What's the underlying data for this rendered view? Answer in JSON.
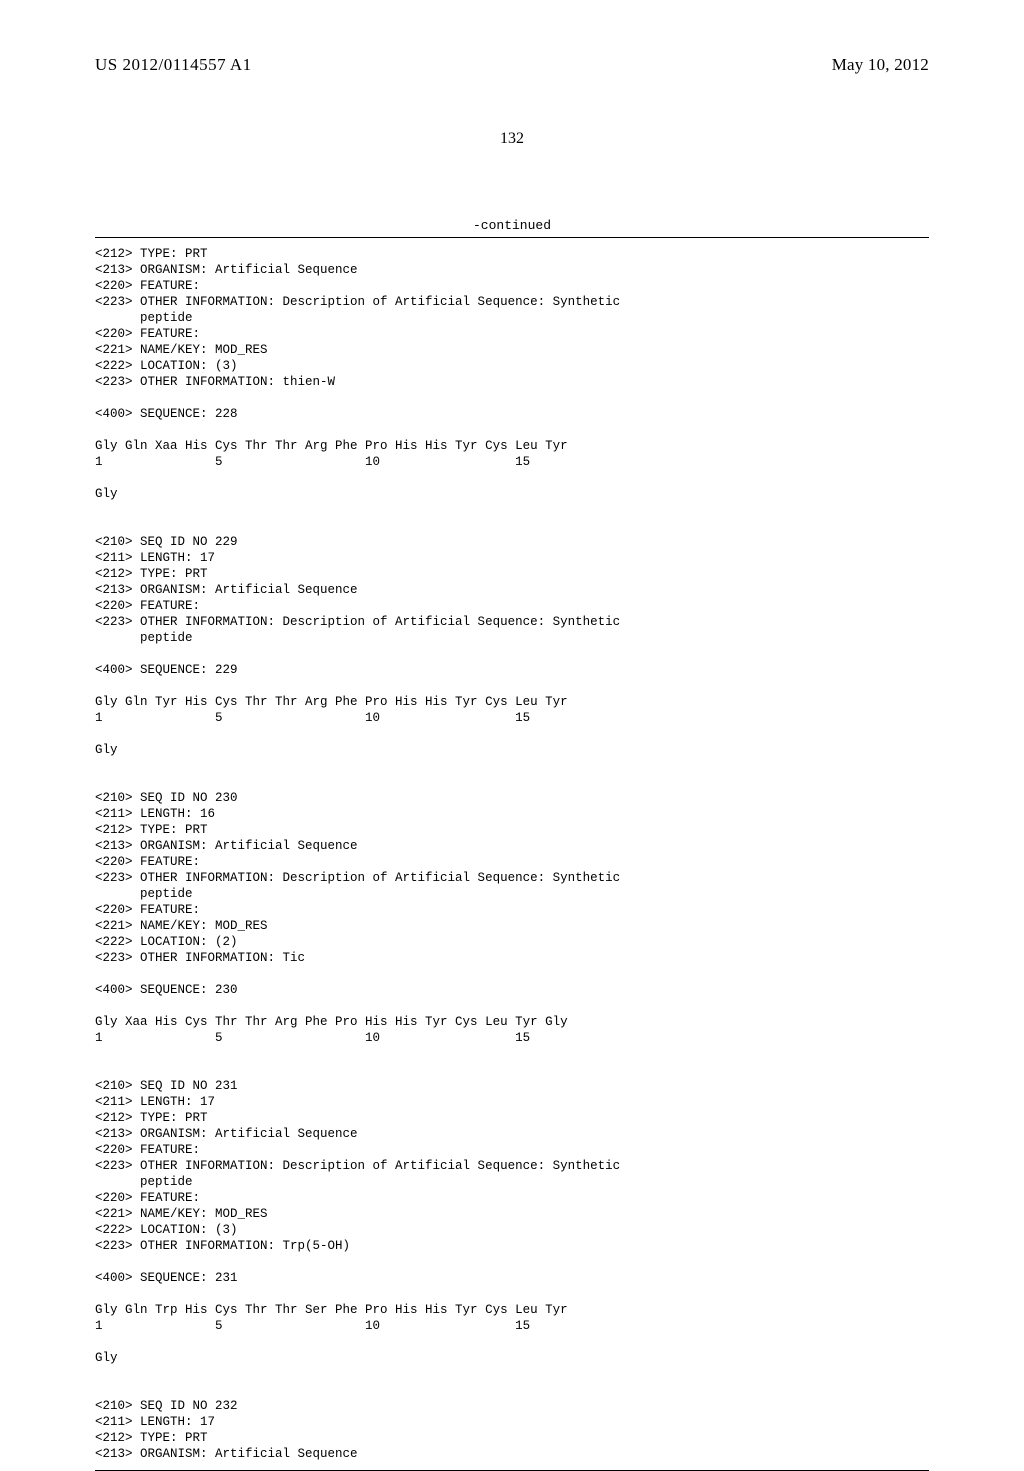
{
  "header": {
    "publication_number": "US 2012/0114557 A1",
    "publication_date": "May 10, 2012"
  },
  "page_number": "132",
  "continued_label": "-continued",
  "blocks": [
    {
      "type": "tags",
      "lines": [
        "<212> TYPE: PRT",
        "<213> ORGANISM: Artificial Sequence",
        "<220> FEATURE:",
        "<223> OTHER INFORMATION: Description of Artificial Sequence: Synthetic",
        "      peptide",
        "<220> FEATURE:",
        "<221> NAME/KEY: MOD_RES",
        "<222> LOCATION: (3)",
        "<223> OTHER INFORMATION: thien-W"
      ]
    },
    {
      "type": "seq_header",
      "line": "<400> SEQUENCE: 228"
    },
    {
      "type": "sequence",
      "residues": "Gly Gln Xaa His Cys Thr Thr Arg Phe Pro His His Tyr Cys Leu Tyr",
      "numbers": "1               5                   10                  15"
    },
    {
      "type": "sequence",
      "residues": "Gly",
      "numbers": ""
    },
    {
      "type": "tags",
      "lines": [
        "<210> SEQ ID NO 229",
        "<211> LENGTH: 17",
        "<212> TYPE: PRT",
        "<213> ORGANISM: Artificial Sequence",
        "<220> FEATURE:",
        "<223> OTHER INFORMATION: Description of Artificial Sequence: Synthetic",
        "      peptide"
      ]
    },
    {
      "type": "seq_header",
      "line": "<400> SEQUENCE: 229"
    },
    {
      "type": "sequence",
      "residues": "Gly Gln Tyr His Cys Thr Thr Arg Phe Pro His His Tyr Cys Leu Tyr",
      "numbers": "1               5                   10                  15"
    },
    {
      "type": "sequence",
      "residues": "Gly",
      "numbers": ""
    },
    {
      "type": "tags",
      "lines": [
        "<210> SEQ ID NO 230",
        "<211> LENGTH: 16",
        "<212> TYPE: PRT",
        "<213> ORGANISM: Artificial Sequence",
        "<220> FEATURE:",
        "<223> OTHER INFORMATION: Description of Artificial Sequence: Synthetic",
        "      peptide",
        "<220> FEATURE:",
        "<221> NAME/KEY: MOD_RES",
        "<222> LOCATION: (2)",
        "<223> OTHER INFORMATION: Tic"
      ]
    },
    {
      "type": "seq_header",
      "line": "<400> SEQUENCE: 230"
    },
    {
      "type": "sequence",
      "residues": "Gly Xaa His Cys Thr Thr Arg Phe Pro His His Tyr Cys Leu Tyr Gly",
      "numbers": "1               5                   10                  15"
    },
    {
      "type": "tags",
      "lines": [
        "<210> SEQ ID NO 231",
        "<211> LENGTH: 17",
        "<212> TYPE: PRT",
        "<213> ORGANISM: Artificial Sequence",
        "<220> FEATURE:",
        "<223> OTHER INFORMATION: Description of Artificial Sequence: Synthetic",
        "      peptide",
        "<220> FEATURE:",
        "<221> NAME/KEY: MOD_RES",
        "<222> LOCATION: (3)",
        "<223> OTHER INFORMATION: Trp(5-OH)"
      ]
    },
    {
      "type": "seq_header",
      "line": "<400> SEQUENCE: 231"
    },
    {
      "type": "sequence",
      "residues": "Gly Gln Trp His Cys Thr Thr Ser Phe Pro His His Tyr Cys Leu Tyr",
      "numbers": "1               5                   10                  15"
    },
    {
      "type": "sequence",
      "residues": "Gly",
      "numbers": ""
    },
    {
      "type": "tags",
      "lines": [
        "<210> SEQ ID NO 232",
        "<211> LENGTH: 17",
        "<212> TYPE: PRT",
        "<213> ORGANISM: Artificial Sequence"
      ]
    }
  ]
}
